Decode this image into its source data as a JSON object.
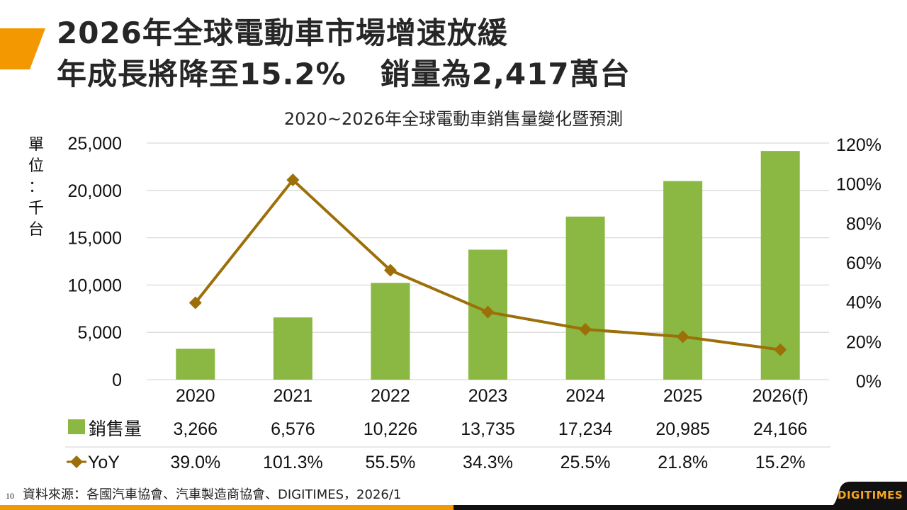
{
  "header": {
    "title_line1": "2026年全球電動車市場增速放緩",
    "title_line2_part1": "年成長將降至15.2%",
    "title_line2_part2": "銷量為2,417萬台"
  },
  "colors": {
    "accent": "#f39800",
    "bar": "#8ab843",
    "line": "#9c6f08",
    "grid": "#d9d9d9",
    "bottom_bar": "#111111",
    "logo": "#f5a623"
  },
  "chart_data": {
    "type": "bar+line",
    "title": "2020~2026年全球電動車銷售量變化暨預測",
    "unit_label": [
      "單",
      "位",
      "：",
      "千",
      "台"
    ],
    "categories": [
      "2020",
      "2021",
      "2022",
      "2023",
      "2024",
      "2025",
      "2026(f)"
    ],
    "series": [
      {
        "name": "銷售量",
        "type": "bar",
        "axis": "left",
        "values": [
          3266,
          6576,
          10226,
          13735,
          17234,
          20985,
          24166
        ],
        "labels": [
          "3,266",
          "6,576",
          "10,226",
          "13,735",
          "17,234",
          "20,985",
          "24,166"
        ]
      },
      {
        "name": "YoY",
        "type": "line",
        "axis": "right",
        "marker": "diamond",
        "values": [
          39.0,
          101.3,
          55.5,
          34.3,
          25.5,
          21.8,
          15.2
        ],
        "labels": [
          "39.0%",
          "101.3%",
          "55.5%",
          "34.3%",
          "25.5%",
          "21.8%",
          "15.2%"
        ]
      }
    ],
    "y_left": {
      "range": [
        0,
        25000
      ],
      "ticks": [
        "0",
        "5,000",
        "10,000",
        "15,000",
        "20,000",
        "25,000"
      ]
    },
    "y_right": {
      "range": [
        0,
        120
      ],
      "ticks": [
        "0%",
        "20%",
        "40%",
        "60%",
        "80%",
        "100%",
        "120%"
      ]
    },
    "grid": true,
    "legend": "data-table-below"
  },
  "footer": {
    "page_number": "10",
    "source": "資料來源：各國汽車協會、汽車製造商協會、DIGITIMES，2026/1",
    "logo": "DIGITIMES"
  }
}
